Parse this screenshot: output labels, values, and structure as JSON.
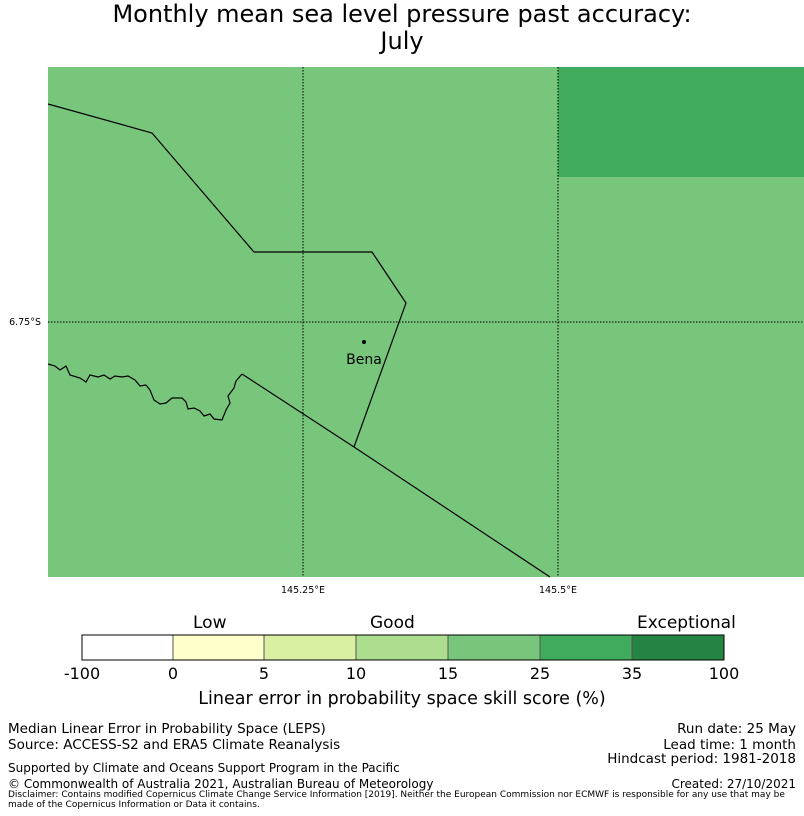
{
  "title": {
    "line1": "Monthly mean sea level pressure past accuracy:",
    "line2": "July"
  },
  "map": {
    "place": "Bena",
    "lat_label": "6.75°S",
    "lon_labels": [
      "145.25°E",
      "145.5°E"
    ],
    "colors": {
      "good_fill": "#78c67c",
      "better_fill": "#41ab5d"
    }
  },
  "colorbar": {
    "category_labels": [
      "Low",
      "Good",
      "Exceptional"
    ],
    "ticks": [
      "-100",
      "0",
      "5",
      "10",
      "15",
      "25",
      "35",
      "100"
    ],
    "colors": [
      "#ffffff",
      "#ffffcc",
      "#d9f0a3",
      "#addd8e",
      "#78c67c",
      "#41ab5d",
      "#238443"
    ],
    "title": "Linear error in probability space skill score (%)"
  },
  "footer": {
    "left1": "Median Linear Error in Probability Space (LEPS)",
    "left2": "Source: ACCESS-S2 and ERA5 Climate Reanalysis",
    "right1": "Run date: 25 May",
    "right2": "Lead time: 1 month",
    "right3": "Hindcast period: 1981-2018",
    "support": "Supported by Climate and Oceans Support Program in the Pacific",
    "copyright": "© Commonwealth of Australia 2021, Australian Bureau of Meteorology",
    "created": "Created: 27/10/2021",
    "disclaimer": "Disclaimer: Contains modified Copernicus Climate Change Service Information [2019]. Neither the European Commission nor ECMWF is responsible for any use that may be made of the Copernicus Information or Data it contains."
  }
}
